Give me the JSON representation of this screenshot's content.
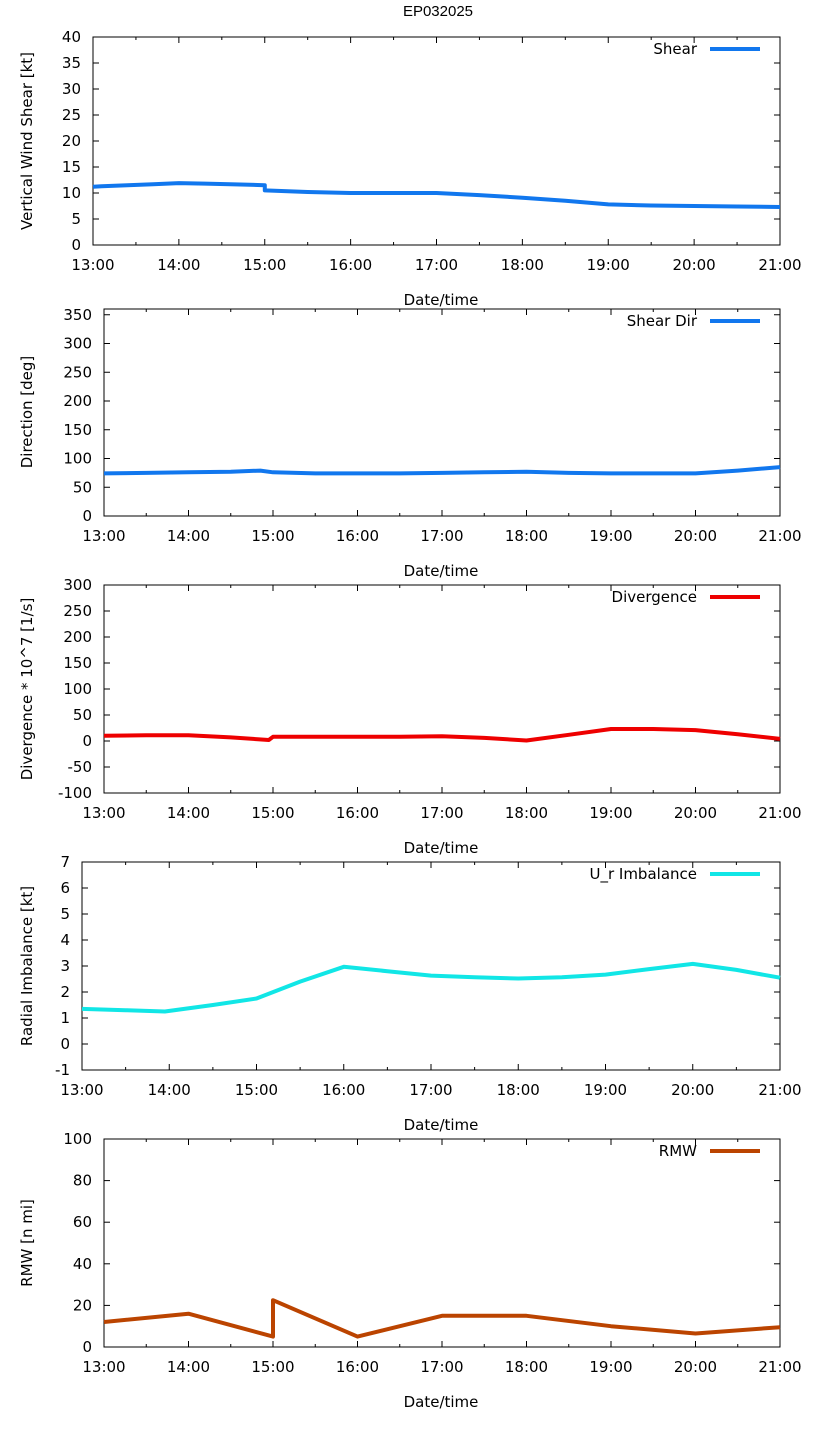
{
  "title": "EP032025",
  "colors": {
    "shear": "#1177ee",
    "shear_dir": "#1177ee",
    "divergence": "#ee0000",
    "imbalance": "#11e6e6",
    "rmw": "#bb4400"
  },
  "chart_data": [
    {
      "type": "line",
      "title": "EP032025",
      "xlabel": "Date/time",
      "ylabel": "Vertical Wind Shear [kt]",
      "legend": "Shear",
      "legend_position": "top-right",
      "grid": false,
      "xlim": [
        13,
        21
      ],
      "ylim": [
        0,
        40
      ],
      "xticks": [
        "13:00",
        "14:00",
        "15:00",
        "16:00",
        "17:00",
        "18:00",
        "19:00",
        "20:00",
        "21:00"
      ],
      "yticks": [
        "0",
        "5",
        "10",
        "15",
        "20",
        "25",
        "30",
        "35",
        "40"
      ],
      "x": [
        13.0,
        13.1,
        13.4,
        13.7,
        14.0,
        14.3,
        14.6,
        15.0,
        15.0,
        15.5,
        16.0,
        16.5,
        17.0,
        17.5,
        18.0,
        18.5,
        19.0,
        19.5,
        20.0,
        20.5,
        21.0
      ],
      "y": [
        11.2,
        11.3,
        11.5,
        11.7,
        11.9,
        11.8,
        11.7,
        11.5,
        10.5,
        10.2,
        10.0,
        10.0,
        10.0,
        9.6,
        9.1,
        8.5,
        7.8,
        7.6,
        7.5,
        7.4,
        7.3
      ]
    },
    {
      "type": "line",
      "xlabel": "Date/time",
      "ylabel": "Direction [deg]",
      "legend": "Shear Dir",
      "legend_position": "top-right",
      "grid": false,
      "xlim": [
        13,
        21
      ],
      "ylim": [
        0,
        360
      ],
      "xticks": [
        "13:00",
        "14:00",
        "15:00",
        "16:00",
        "17:00",
        "18:00",
        "19:00",
        "20:00",
        "21:00"
      ],
      "yticks": [
        "0",
        "50",
        "100",
        "150",
        "200",
        "250",
        "300",
        "350"
      ],
      "x": [
        13.0,
        13.5,
        14.0,
        14.5,
        14.85,
        15.0,
        15.5,
        16.0,
        16.5,
        17.0,
        17.5,
        18.0,
        18.5,
        19.0,
        19.5,
        20.0,
        20.5,
        21.0
      ],
      "y": [
        74,
        75,
        76,
        77,
        79,
        76,
        74,
        74,
        74,
        75,
        76,
        77,
        75,
        74,
        74,
        74,
        79,
        85
      ]
    },
    {
      "type": "line",
      "xlabel": "Date/time",
      "ylabel": "Divergence * 10^7 [1/s]",
      "legend": "Divergence",
      "legend_position": "top-right",
      "grid": false,
      "xlim": [
        13,
        21
      ],
      "ylim": [
        -100,
        300
      ],
      "xticks": [
        "13:00",
        "14:00",
        "15:00",
        "16:00",
        "17:00",
        "18:00",
        "19:00",
        "20:00",
        "21:00"
      ],
      "yticks": [
        "-100",
        "-50",
        "0",
        "50",
        "100",
        "150",
        "200",
        "250",
        "300"
      ],
      "x": [
        13.0,
        13.5,
        14.0,
        14.5,
        14.95,
        15.0,
        15.5,
        16.0,
        16.5,
        17.0,
        17.5,
        18.0,
        18.5,
        19.0,
        19.5,
        20.0,
        20.5,
        21.0
      ],
      "y": [
        10,
        11,
        11,
        7,
        2,
        8,
        8,
        8,
        8,
        9,
        6,
        1,
        12,
        23,
        23,
        21,
        13,
        4
      ]
    },
    {
      "type": "line",
      "xlabel": "Date/time",
      "ylabel": "Radial Imbalance [kt]",
      "legend": "U_r Imbalance",
      "legend_position": "top-right",
      "grid": false,
      "xlim": [
        13,
        21
      ],
      "ylim": [
        -1,
        7
      ],
      "xticks": [
        "13:00",
        "14:00",
        "15:00",
        "16:00",
        "17:00",
        "18:00",
        "19:00",
        "20:00",
        "21:00"
      ],
      "yticks": [
        "-1",
        "0",
        "1",
        "2",
        "3",
        "4",
        "5",
        "6",
        "7"
      ],
      "x": [
        13.0,
        13.5,
        13.95,
        14.5,
        15.0,
        15.5,
        16.0,
        16.5,
        17.0,
        17.5,
        18.0,
        18.5,
        19.0,
        19.5,
        20.0,
        20.5,
        21.0
      ],
      "y": [
        1.35,
        1.3,
        1.25,
        1.5,
        1.75,
        2.4,
        2.97,
        2.8,
        2.63,
        2.57,
        2.52,
        2.57,
        2.67,
        2.88,
        3.08,
        2.85,
        2.55
      ]
    },
    {
      "type": "line",
      "xlabel": "Date/time",
      "ylabel": "RMW [n mi]",
      "legend": "RMW",
      "legend_position": "top-right",
      "grid": false,
      "xlim": [
        13,
        21
      ],
      "ylim": [
        0,
        100
      ],
      "xticks": [
        "13:00",
        "14:00",
        "15:00",
        "16:00",
        "17:00",
        "18:00",
        "19:00",
        "20:00",
        "21:00"
      ],
      "yticks": [
        "0",
        "20",
        "40",
        "60",
        "80",
        "100"
      ],
      "x": [
        13.0,
        14.0,
        15.0,
        15.0,
        16.0,
        17.0,
        18.0,
        19.0,
        20.0,
        21.0
      ],
      "y": [
        12,
        16,
        5,
        22.5,
        5,
        15,
        15,
        10,
        6.5,
        9.5
      ]
    }
  ]
}
